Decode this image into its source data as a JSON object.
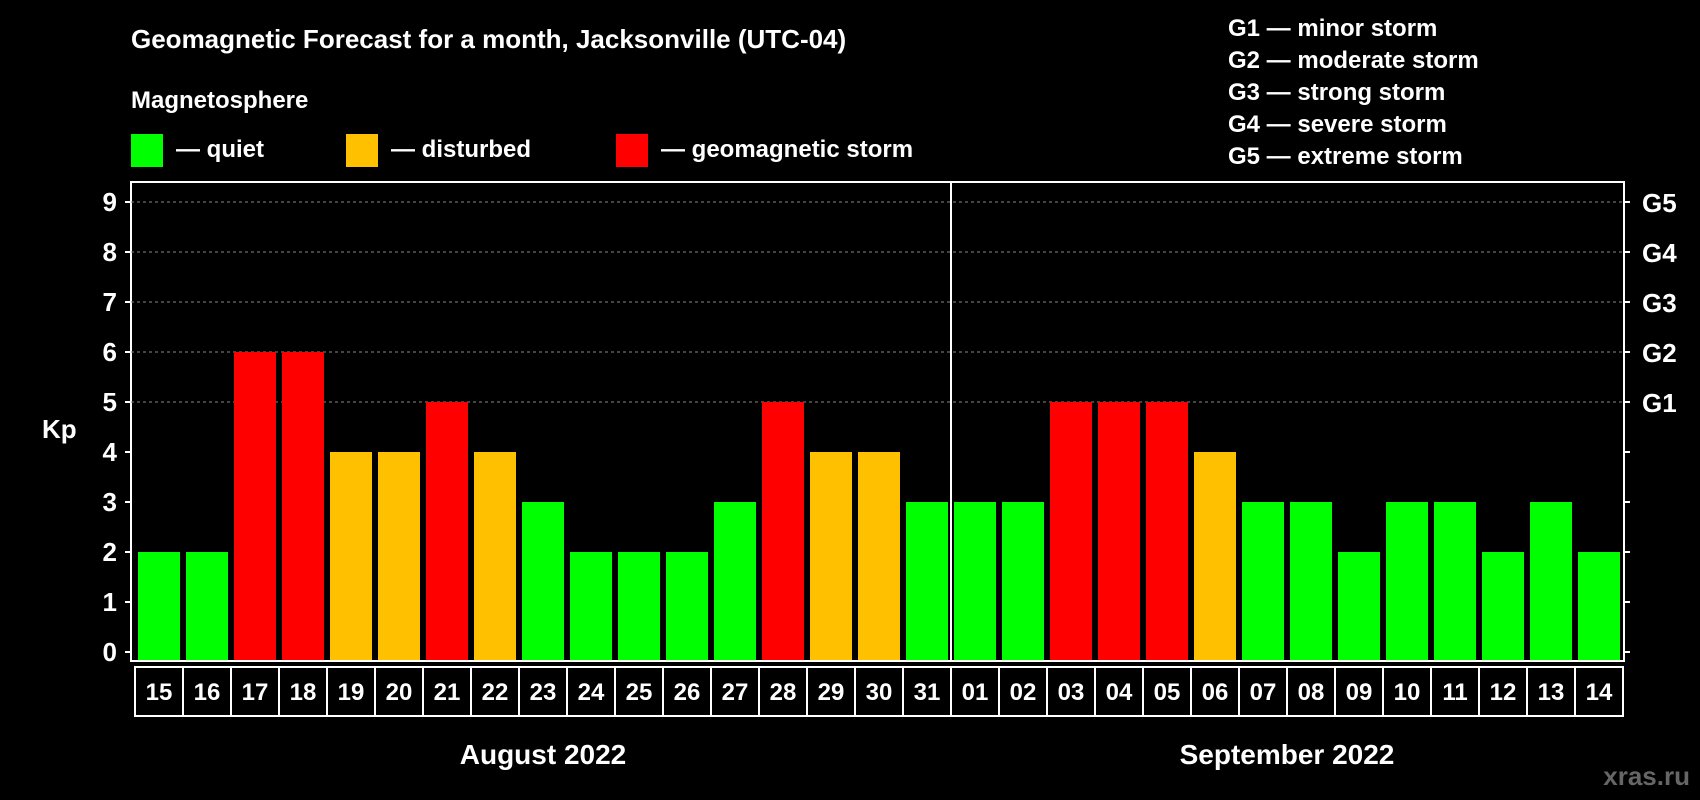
{
  "chart_data": {
    "type": "bar",
    "title": "Geomagnetic Forecast for a month, Jacksonville (UTC-04)",
    "legend_title": "Magnetosphere",
    "legend": [
      {
        "label": "— quiet",
        "color": "#00ff00"
      },
      {
        "label": "— disturbed",
        "color": "#ffc000"
      },
      {
        "label": "— geomagnetic storm",
        "color": "#ff0000"
      }
    ],
    "storm_scale": [
      "G1 — minor storm",
      "G2 — moderate storm",
      "G3 — strong storm",
      "G4 — severe storm",
      "G5 — extreme storm"
    ],
    "ylabel": "Kp",
    "ylim": [
      0,
      9
    ],
    "yticks": [
      "0",
      "1",
      "2",
      "3",
      "4",
      "5",
      "6",
      "7",
      "8",
      "9"
    ],
    "right_ticks": [
      {
        "kp": 5,
        "label": "G1"
      },
      {
        "kp": 6,
        "label": "G2"
      },
      {
        "kp": 7,
        "label": "G3"
      },
      {
        "kp": 8,
        "label": "G4"
      },
      {
        "kp": 9,
        "label": "G5"
      }
    ],
    "months": [
      {
        "label": "August 2022",
        "categories": [
          "15",
          "16",
          "17",
          "18",
          "19",
          "20",
          "21",
          "22",
          "23",
          "24",
          "25",
          "26",
          "27",
          "28",
          "29",
          "30",
          "31"
        ],
        "values": [
          2,
          2,
          6,
          6,
          4,
          4,
          5,
          4,
          3,
          2,
          2,
          2,
          3,
          5,
          4,
          4,
          3
        ]
      },
      {
        "label": "September 2022",
        "categories": [
          "01",
          "02",
          "03",
          "04",
          "05",
          "06",
          "07",
          "08",
          "09",
          "10",
          "11",
          "12",
          "13",
          "14"
        ],
        "values": [
          3,
          3,
          5,
          5,
          5,
          4,
          3,
          3,
          2,
          3,
          3,
          2,
          3,
          2
        ]
      }
    ],
    "colors": {
      "quiet": "#00ff00",
      "disturbed": "#ffc000",
      "storm": "#ff0000"
    },
    "grid": true
  },
  "watermark": "xras.ru"
}
